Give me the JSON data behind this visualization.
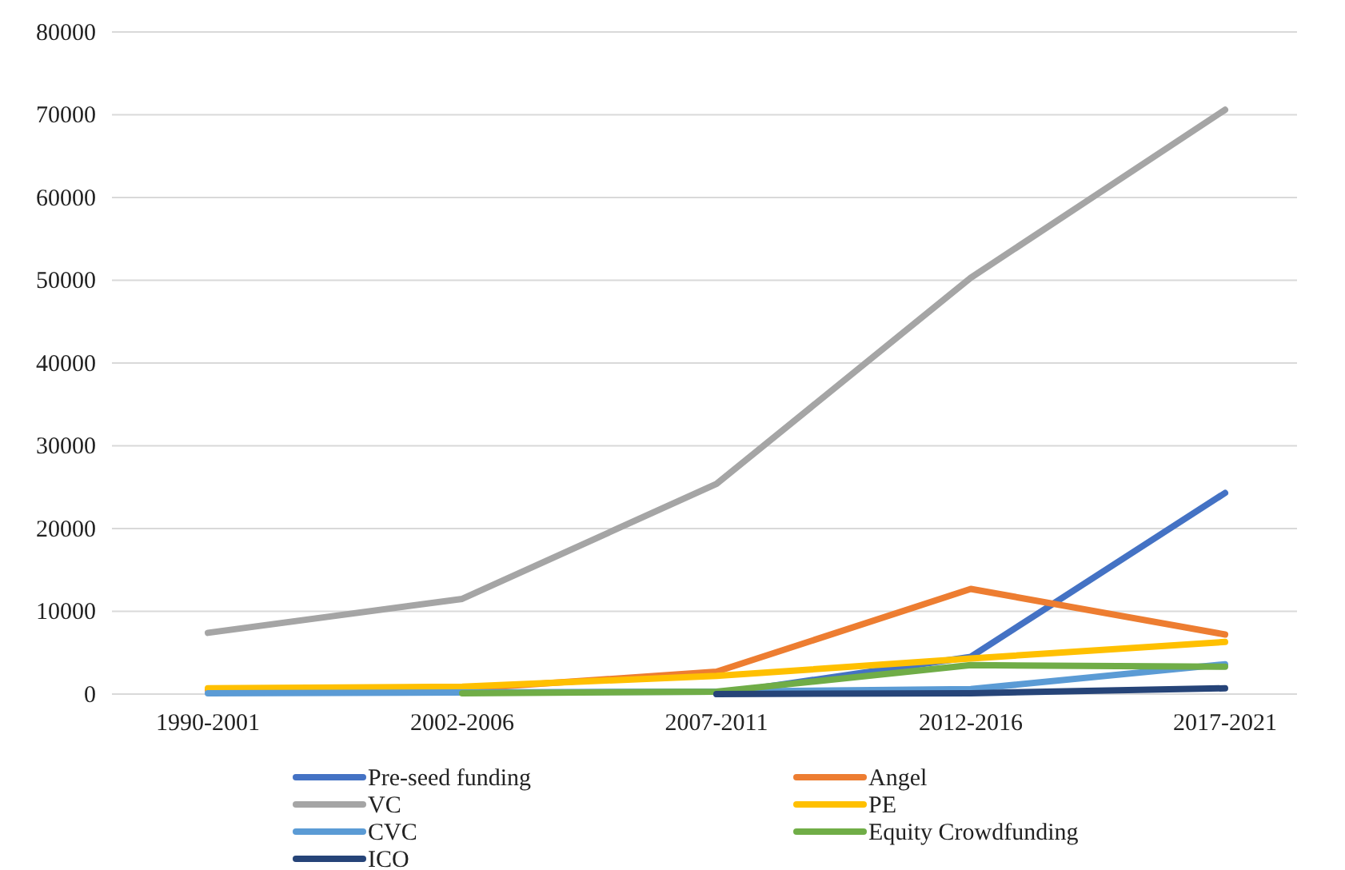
{
  "chart_data": {
    "type": "line",
    "categories": [
      "1990-2001",
      "2002-2006",
      "2007-2011",
      "2012-2016",
      "2017-2021"
    ],
    "series": [
      {
        "name": "Pre-seed funding",
        "color": "#4472c4",
        "values": [
          null,
          null,
          0,
          4500,
          24300
        ]
      },
      {
        "name": "Angel",
        "color": "#ed7d31",
        "values": [
          500,
          600,
          2700,
          12700,
          7200
        ]
      },
      {
        "name": "VC",
        "color": "#a5a5a5",
        "values": [
          7400,
          11500,
          25400,
          50300,
          70600
        ]
      },
      {
        "name": "PE",
        "color": "#ffc000",
        "values": [
          700,
          900,
          2200,
          4300,
          6300
        ]
      },
      {
        "name": "CVC",
        "color": "#5b9bd5",
        "values": [
          100,
          200,
          300,
          600,
          3600
        ]
      },
      {
        "name": "Equity Crowdfunding",
        "color": "#70ad47",
        "values": [
          null,
          100,
          300,
          3500,
          3300
        ]
      },
      {
        "name": "ICO",
        "color": "#264478",
        "values": [
          null,
          null,
          0,
          100,
          700
        ]
      }
    ],
    "ylim": [
      0,
      80000
    ],
    "yticks": [
      0,
      10000,
      20000,
      30000,
      40000,
      50000,
      60000,
      70000,
      80000
    ],
    "grid": "y",
    "legend": "bottom",
    "marker": "none",
    "line_style": "solid"
  }
}
